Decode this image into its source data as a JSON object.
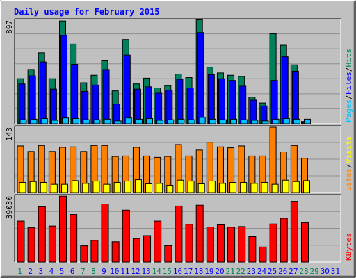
{
  "title": "Daily usage for February 2015",
  "colors": {
    "background": "#C0C0C0",
    "plot": "#C0C0C0",
    "grid": "#909090",
    "title": "#0000FF",
    "hits": "#00805C",
    "files": "#0000FF",
    "pages": "#00C0FF",
    "visits": "#FFFF00",
    "sites": "#FF8000",
    "kbytes": "#FF0000",
    "weekday_label": "#0000FF",
    "weekend_label": "#00805C"
  },
  "chart_data": [
    {
      "type": "bar",
      "panel": "top",
      "ymax_label": "897",
      "ylim": [
        0,
        897
      ],
      "legend": [
        {
          "text": "Pages",
          "color": "#00C0FF"
        },
        {
          "text": "/",
          "color": "#000000"
        },
        {
          "text": "Files",
          "color": "#0000FF"
        },
        {
          "text": "/",
          "color": "#000000"
        },
        {
          "text": "Hits",
          "color": "#00805C"
        }
      ],
      "categories": [
        "1",
        "2",
        "3",
        "4",
        "5",
        "6",
        "7",
        "8",
        "9",
        "10",
        "11",
        "12",
        "13",
        "14",
        "15",
        "16",
        "17",
        "18",
        "19",
        "20",
        "21",
        "22",
        "23",
        "24",
        "25",
        "26",
        "27",
        "28"
      ],
      "series": [
        {
          "name": "Hits",
          "values": [
            390,
            470,
            615,
            390,
            890,
            690,
            355,
            420,
            545,
            285,
            730,
            345,
            395,
            310,
            330,
            430,
            400,
            900,
            490,
            440,
            420,
            410,
            230,
            180,
            780,
            680,
            510,
            20
          ]
        },
        {
          "name": "Files",
          "values": [
            345,
            415,
            535,
            300,
            765,
            515,
            280,
            335,
            470,
            170,
            595,
            300,
            320,
            265,
            290,
            385,
            310,
            790,
            425,
            390,
            375,
            325,
            205,
            155,
            375,
            580,
            455,
            15
          ]
        },
        {
          "name": "Pages",
          "values": [
            35,
            40,
            45,
            30,
            50,
            45,
            35,
            35,
            40,
            25,
            50,
            40,
            45,
            30,
            35,
            40,
            35,
            55,
            40,
            35,
            40,
            35,
            30,
            25,
            40,
            45,
            40,
            40
          ]
        }
      ]
    },
    {
      "type": "bar",
      "panel": "middle",
      "ymax_label": "143",
      "ylim": [
        0,
        143
      ],
      "legend": [
        {
          "text": "Sites",
          "color": "#FF8000"
        },
        {
          "text": "/",
          "color": "#000000"
        },
        {
          "text": "Visits",
          "color": "#FFFF00"
        }
      ],
      "categories": [
        "1",
        "2",
        "3",
        "4",
        "5",
        "6",
        "7",
        "8",
        "9",
        "10",
        "11",
        "12",
        "13",
        "14",
        "15",
        "16",
        "17",
        "18",
        "19",
        "20",
        "21",
        "22",
        "23",
        "24",
        "25",
        "26",
        "27",
        "28"
      ],
      "series": [
        {
          "name": "Sites",
          "values": [
            102,
            90,
            103,
            90,
            99,
            100,
            90,
            103,
            103,
            79,
            80,
            99,
            80,
            77,
            79,
            105,
            80,
            93,
            110,
            100,
            98,
            102,
            80,
            80,
            143,
            89,
            103,
            75
          ]
        },
        {
          "name": "Visits",
          "values": [
            22,
            24,
            22,
            18,
            18,
            26,
            20,
            25,
            18,
            22,
            25,
            28,
            19,
            20,
            16,
            27,
            25,
            19,
            25,
            20,
            22,
            22,
            20,
            22,
            18,
            27,
            24,
            26
          ]
        }
      ]
    },
    {
      "type": "bar",
      "panel": "bottom",
      "ymax_label": "39030",
      "ylim": [
        0,
        39030
      ],
      "legend": [
        {
          "text": "KBytes",
          "color": "#FF0000"
        }
      ],
      "categories": [
        "1",
        "2",
        "3",
        "4",
        "5",
        "6",
        "7",
        "8",
        "9",
        "10",
        "11",
        "12",
        "13",
        "14",
        "15",
        "16",
        "17",
        "18",
        "19",
        "20",
        "21",
        "22",
        "23",
        "24",
        "25",
        "26",
        "27",
        "28"
      ],
      "series": [
        {
          "name": "KBytes",
          "values": [
            24200,
            20300,
            32700,
            21300,
            38950,
            28100,
            9600,
            12800,
            34300,
            12000,
            30700,
            13900,
            15600,
            24200,
            9700,
            33100,
            22300,
            33600,
            20700,
            22000,
            20600,
            21000,
            15000,
            8900,
            22500,
            25900,
            35900,
            23200
          ]
        }
      ]
    }
  ],
  "days": [
    "1",
    "2",
    "3",
    "4",
    "5",
    "6",
    "7",
    "8",
    "9",
    "10",
    "11",
    "12",
    "13",
    "14",
    "15",
    "16",
    "17",
    "18",
    "19",
    "20",
    "21",
    "22",
    "23",
    "24",
    "25",
    "26",
    "27",
    "28",
    "29",
    "30",
    "31"
  ],
  "weekend_days": [
    0,
    6,
    7,
    13,
    14,
    20,
    21,
    27,
    28
  ]
}
